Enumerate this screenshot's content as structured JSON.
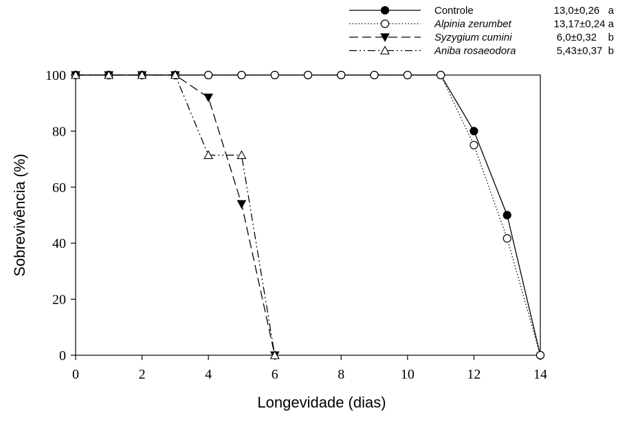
{
  "chart_data": {
    "type": "line",
    "title": "",
    "xlabel": "Longevidade (dias)",
    "ylabel": "Sobrevivência (%)",
    "xlim": [
      0,
      14
    ],
    "ylim": [
      0,
      100
    ],
    "xticks": [
      0,
      2,
      4,
      6,
      8,
      10,
      12,
      14
    ],
    "yticks": [
      0,
      20,
      40,
      60,
      80,
      100
    ],
    "grid": false,
    "legend_position": "top-right",
    "series": [
      {
        "name": "Controle",
        "stat": "13,0±0,26   a",
        "italic": false,
        "line": "solid",
        "marker": "circle-filled",
        "color": "#000000",
        "x": [
          0,
          1,
          2,
          3,
          4,
          5,
          6,
          7,
          8,
          9,
          10,
          11,
          12,
          13,
          14
        ],
        "y": [
          100,
          100,
          100,
          100,
          100,
          100,
          100,
          100,
          100,
          100,
          100,
          100,
          80,
          50,
          0
        ]
      },
      {
        "name": "Alpinia zerumbet",
        "stat": "13,17±0,24 a",
        "italic": true,
        "line": "dotted",
        "marker": "circle-open",
        "color": "#000000",
        "x": [
          0,
          1,
          2,
          3,
          4,
          5,
          6,
          7,
          8,
          9,
          10,
          11,
          12,
          13,
          14
        ],
        "y": [
          100,
          100,
          100,
          100,
          100,
          100,
          100,
          100,
          100,
          100,
          100,
          100,
          75,
          41.7,
          0
        ]
      },
      {
        "name": "Syzygium cumini",
        "stat": "6,0±0,32    b",
        "italic": true,
        "line": "dashed",
        "marker": "triangle-down-filled",
        "color": "#000000",
        "x": [
          0,
          1,
          2,
          3,
          4,
          5,
          6
        ],
        "y": [
          100,
          100,
          100,
          100,
          92,
          54,
          0
        ]
      },
      {
        "name": "Aniba rosaeodora",
        "stat": "5,43±0,37  b",
        "italic": true,
        "line": "dashdotdot",
        "marker": "triangle-up-open",
        "color": "#000000",
        "x": [
          0,
          1,
          2,
          3,
          4,
          5,
          6
        ],
        "y": [
          100,
          100,
          100,
          100,
          71.4,
          71.4,
          0
        ]
      }
    ]
  }
}
